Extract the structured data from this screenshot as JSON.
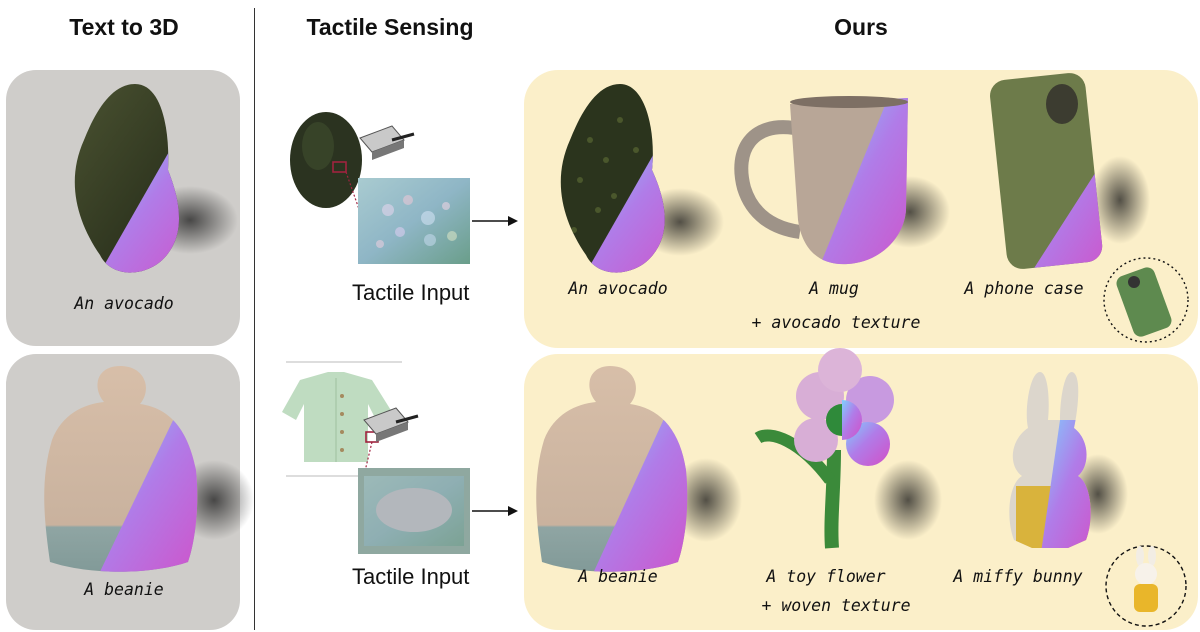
{
  "headers": {
    "text_to_3d": "Text to 3D",
    "tactile_sensing": "Tactile Sensing",
    "ours": "Ours"
  },
  "baseline": {
    "avocado_caption": "An avocado",
    "beanie_caption": "A beanie"
  },
  "tactile": {
    "row1_label": "Tactile Input",
    "row2_label": "Tactile Input"
  },
  "ours_row1": {
    "avocado": "An avocado",
    "mug": "A mug",
    "mug_texture": "+ avocado texture",
    "phone_case": "A phone case"
  },
  "ours_row2": {
    "beanie": "A beanie",
    "toy_flower": "A toy flower",
    "flower_texture": "+ woven texture",
    "miffy": "A miffy bunny"
  },
  "colors": {
    "grey_panel": "#cfcdca",
    "yellow_panel": "#fbefc9",
    "normal_map": "#a86be0"
  }
}
